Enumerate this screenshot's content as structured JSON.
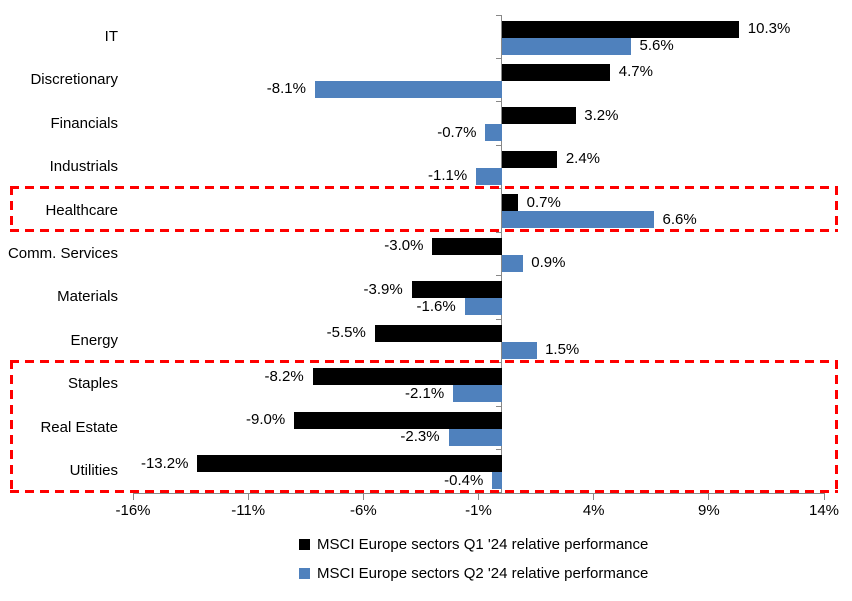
{
  "chart_data": {
    "type": "bar",
    "orientation": "horizontal",
    "categories": [
      "IT",
      "Discretionary",
      "Financials",
      "Industrials",
      "Healthcare",
      "Comm. Services",
      "Materials",
      "Energy",
      "Staples",
      "Real Estate",
      "Utilities"
    ],
    "series": [
      {
        "name": "MSCI Europe sectors Q1 '24 relative performance",
        "color": "#000000",
        "values": [
          10.3,
          4.7,
          3.2,
          2.4,
          0.7,
          -3.0,
          -3.9,
          -5.5,
          -8.2,
          -9.0,
          -13.2
        ],
        "labels": [
          "10.3%",
          "4.7%",
          "3.2%",
          "2.4%",
          "0.7%",
          "-3.0%",
          "-3.9%",
          "-5.5%",
          "-8.2%",
          "-9.0%",
          "-13.2%"
        ]
      },
      {
        "name": "MSCI Europe sectors Q2 '24 relative performance",
        "color": "#4F81BD",
        "values": [
          5.6,
          -8.1,
          -0.7,
          -1.1,
          6.6,
          0.9,
          -1.6,
          1.5,
          -2.1,
          -2.3,
          -0.4
        ],
        "labels": [
          "5.6%",
          "-8.1%",
          "-0.7%",
          "-1.1%",
          "6.6%",
          "0.9%",
          "-1.6%",
          "1.5%",
          "-2.1%",
          "-2.3%",
          "-0.4%"
        ]
      }
    ],
    "x_axis": {
      "tick_labels": [
        "-16%",
        "-11%",
        "-6%",
        "-1%",
        "4%",
        "9%",
        "14%"
      ],
      "tick_values": [
        -16,
        -11,
        -6,
        -1,
        4,
        9,
        14
      ],
      "min": -16,
      "max": 14,
      "grid": false,
      "axis_color": "#888888"
    },
    "legend": {
      "position": "bottom-center"
    },
    "highlights": {
      "color": "#FF0000",
      "boxes": [
        {
          "rows": [
            "Healthcare"
          ]
        },
        {
          "rows": [
            "Staples",
            "Real Estate",
            "Utilities"
          ]
        }
      ]
    }
  }
}
